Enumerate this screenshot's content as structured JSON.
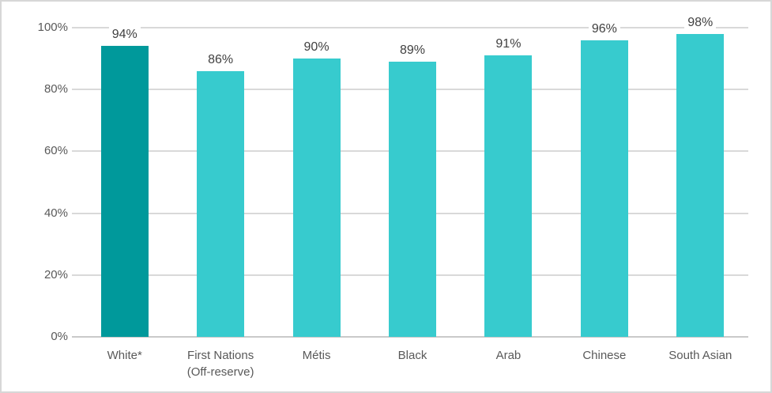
{
  "chart_data": {
    "type": "bar",
    "categories": [
      "White*",
      "First Nations (Off-reserve)",
      "Métis",
      "Black",
      "Arab",
      "Chinese",
      "South Asian"
    ],
    "values": [
      94,
      86,
      90,
      89,
      91,
      96,
      98
    ],
    "value_labels": [
      "94%",
      "86%",
      "90%",
      "89%",
      "91%",
      "96%",
      "98%"
    ],
    "bar_colors": [
      "#00999b",
      "#37cbce",
      "#37cbce",
      "#37cbce",
      "#37cbce",
      "#37cbce",
      "#37cbce"
    ],
    "highlighted_category": "White*",
    "highlight_color": "#00999b",
    "default_bar_color": "#37cbce",
    "xlabel": "",
    "ylabel": "",
    "ylim": [
      0,
      100
    ],
    "yticks": [
      0,
      20,
      40,
      60,
      80,
      100
    ],
    "ytick_labels": [
      "0%",
      "20%",
      "40%",
      "60%",
      "80%",
      "100%"
    ],
    "grid": "horizontal",
    "legend": "none"
  },
  "colors": {
    "background": "#ffffff",
    "frame_border": "#d7d7d7",
    "grid_line": "#d9d9d9",
    "axis_line": "#c9c9c9",
    "tick_label": "#595959",
    "data_label": "#404040"
  }
}
